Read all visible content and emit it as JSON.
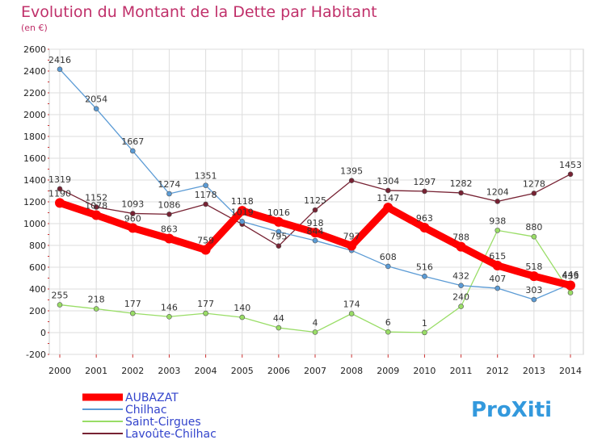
{
  "chart_data": {
    "type": "line",
    "title": "Evolution du Montant de la Dette par Habitant",
    "unit_label": "(en €)",
    "x": [
      "2000",
      "2001",
      "2002",
      "2003",
      "2004",
      "2005",
      "2006",
      "2007",
      "2008",
      "2009",
      "2010",
      "2011",
      "2012",
      "2013",
      "2014"
    ],
    "ylim": [
      -200,
      2600
    ],
    "yticks": [
      -200,
      0,
      200,
      400,
      600,
      800,
      1000,
      1200,
      1400,
      1600,
      1800,
      2000,
      2200,
      2400,
      2600
    ],
    "grid": true,
    "legend_position": "bottom-left",
    "series": [
      {
        "name": "AUBAZAT",
        "color": "#ff0000",
        "values": [
          1190,
          1078,
          960,
          863,
          759,
          1118,
          1016,
          918,
          797,
          1147,
          963,
          788,
          615,
          518,
          433
        ]
      },
      {
        "name": "Chilhac",
        "color": "#5b9bd5",
        "values": [
          2416,
          2054,
          1667,
          1274,
          1351,
          1019,
          925,
          844,
          754,
          608,
          516,
          432,
          407,
          303,
          446
        ]
      },
      {
        "name": "Saint-Cirgues",
        "color": "#99dd66",
        "values": [
          255,
          218,
          177,
          146,
          177,
          140,
          44,
          4,
          174,
          6,
          1,
          240,
          938,
          880,
          366
        ]
      },
      {
        "name": "Lavoûte-Chilhac",
        "color": "#772233",
        "values": [
          1319,
          1152,
          1093,
          1086,
          1178,
          995,
          795,
          1125,
          1395,
          1304,
          1297,
          1282,
          1204,
          1278,
          1453
        ]
      }
    ],
    "data_labels": [
      [
        "1190",
        "1078",
        "960",
        "863",
        "759",
        "1118",
        "1016",
        "918",
        "797",
        "1147",
        "963",
        "788",
        "615",
        "518",
        "433"
      ],
      [
        "2416",
        "2054",
        "1667",
        "1274",
        "1351",
        "1019",
        "",
        "844",
        "",
        "608",
        "516",
        "432",
        "407",
        "303",
        "446"
      ],
      [
        "255",
        "218",
        "177",
        "146",
        "177",
        "140",
        "44",
        "4",
        "174",
        "6",
        "1",
        "240",
        "938",
        "880",
        ""
      ],
      [
        "1319",
        "1152",
        "1093",
        "1086",
        "1178",
        "",
        "795",
        "1125",
        "1395",
        "1304",
        "1297",
        "1282",
        "1204",
        "1278",
        "1453"
      ]
    ]
  },
  "logo": {
    "text": "ProXiti"
  }
}
